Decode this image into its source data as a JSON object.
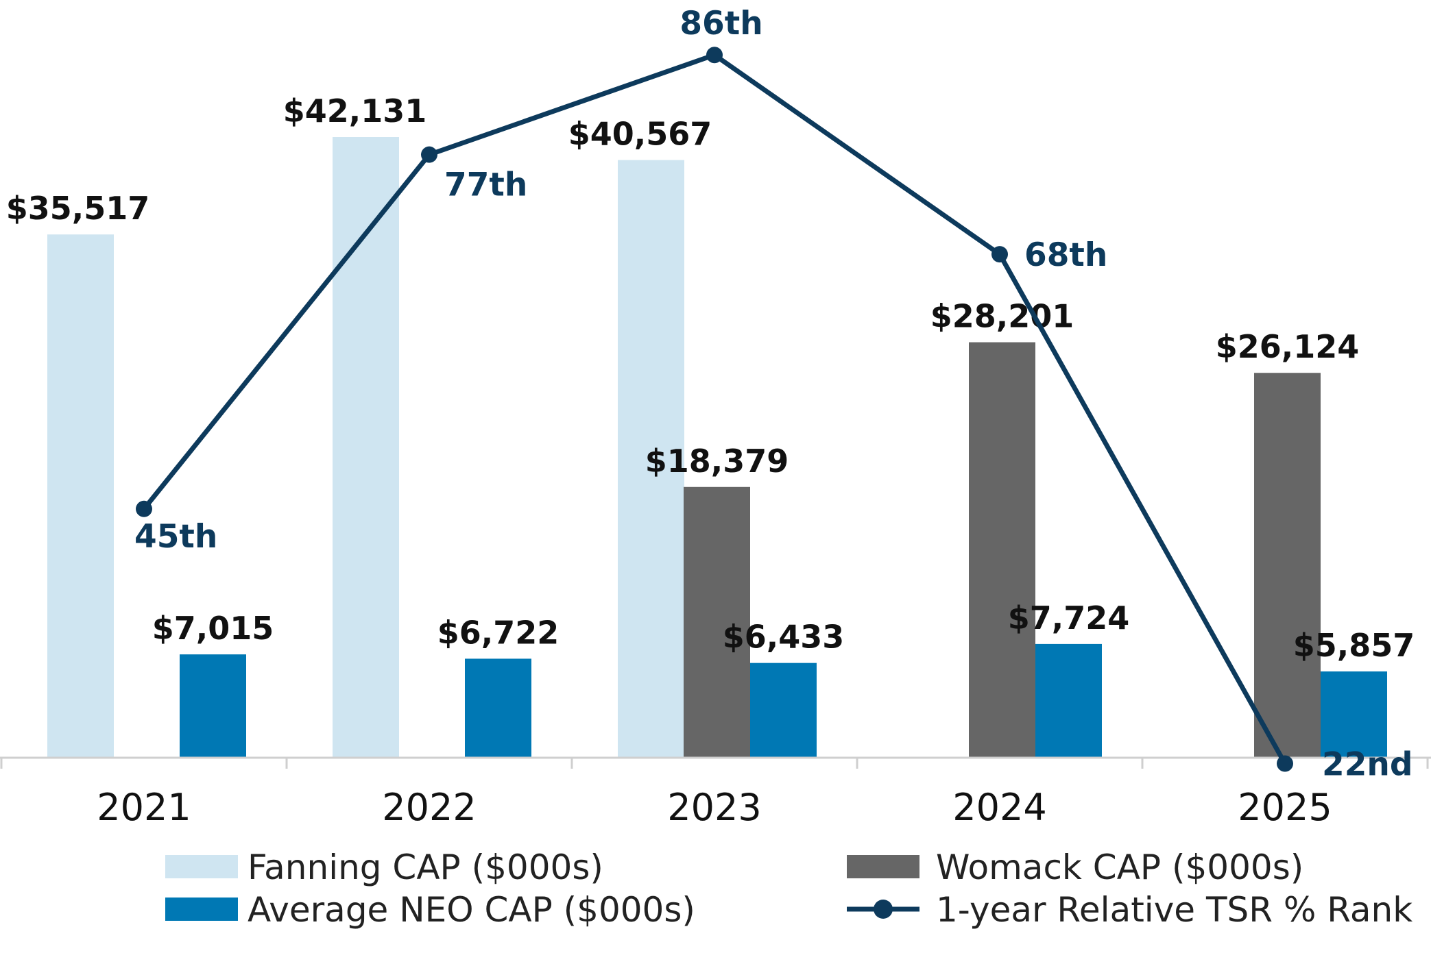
{
  "chart_data": {
    "type": "bar",
    "title": "",
    "xlabel": "",
    "ylabel": "",
    "categories": [
      "2021",
      "2022",
      "2023",
      "2024",
      "2025"
    ],
    "ylim": [
      0,
      50000
    ],
    "series": [
      {
        "name": "Fanning CAP ($000s)",
        "color": "#cfe5f1",
        "values": [
          35517,
          42131,
          40567,
          null,
          null
        ],
        "labels": [
          "$35,517",
          "$42,131",
          "$40,567",
          "",
          ""
        ]
      },
      {
        "name": "Womack CAP ($000s)",
        "color": "#666666",
        "values": [
          null,
          null,
          18379,
          28201,
          26124
        ],
        "labels": [
          "",
          "",
          "$18,379",
          "$28,201",
          "$26,124"
        ]
      },
      {
        "name": "Average NEO CAP ($000s)",
        "color": "#0078b4",
        "values": [
          7015,
          6722,
          6433,
          7724,
          5857
        ],
        "labels": [
          "$7,015",
          "$6,722",
          "$6,433",
          "$7,724",
          "$5,857"
        ]
      }
    ],
    "line_series": {
      "name": "1-year Relative TSR % Rank",
      "color": "#0d3a5c",
      "values": [
        45,
        77,
        86,
        68,
        22
      ],
      "labels": [
        "45th",
        "77th",
        "86th",
        "68th",
        "22nd"
      ]
    },
    "legend": [
      "Fanning CAP ($000s)",
      "Womack CAP ($000s)",
      "Average NEO CAP ($000s)",
      "1-year Relative TSR % Rank"
    ],
    "legend_position": "bottom"
  }
}
